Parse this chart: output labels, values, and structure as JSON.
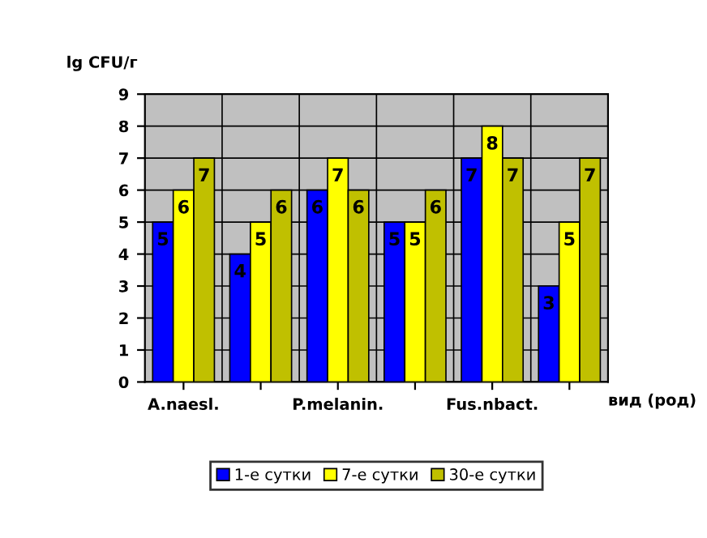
{
  "chart_data": {
    "type": "bar",
    "ylabel": "lg CFU/г",
    "xlabel": "вид (род)",
    "categories": [
      "A.naesl.",
      null,
      "P.melanin.",
      null,
      "Fus.nbact.",
      null
    ],
    "series": [
      {
        "name": "1-е сутки",
        "color": "#0000ff",
        "values": [
          5,
          4,
          6,
          5,
          7,
          3
        ]
      },
      {
        "name": "7-е сутки",
        "color": "#ffff00",
        "values": [
          6,
          5,
          7,
          5,
          8,
          5
        ]
      },
      {
        "name": "30-е сутки",
        "color": "#c0c000",
        "values": [
          7,
          6,
          6,
          6,
          7,
          7
        ]
      }
    ],
    "ylim": [
      0,
      9
    ],
    "yticks": [
      0,
      1,
      2,
      3,
      4,
      5,
      6,
      7,
      8,
      9
    ],
    "grid": true,
    "legend": "bottom",
    "data_labels": true
  }
}
